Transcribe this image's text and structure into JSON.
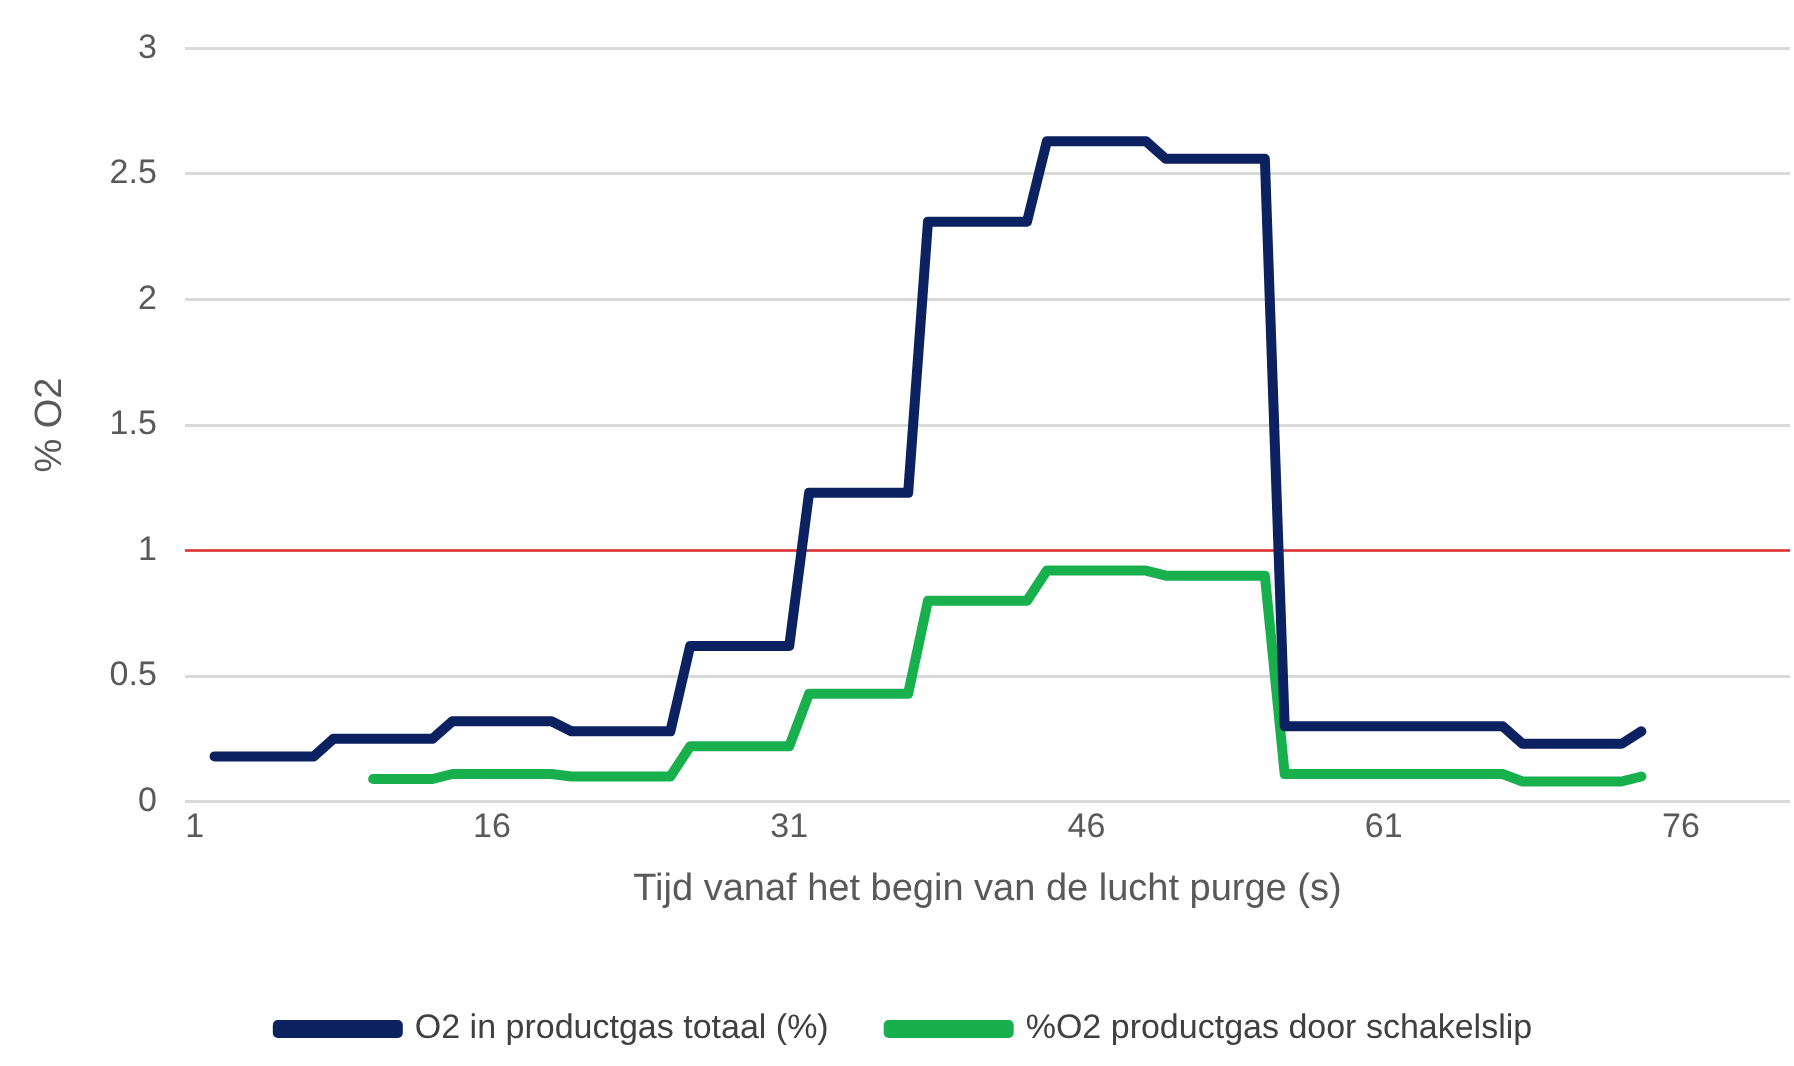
{
  "chart_data": {
    "type": "line",
    "xlabel": "Tijd vanaf het begin van de lucht purge (s)",
    "ylabel": "% O2",
    "xlim": [
      0.5,
      81.5
    ],
    "xticks": [
      1,
      16,
      31,
      46,
      61,
      76
    ],
    "ylim": [
      0,
      3
    ],
    "yticks": [
      0,
      0.5,
      1,
      1.5,
      2,
      2.5,
      3
    ],
    "grid": "y",
    "legend": "bottom",
    "marker": "none",
    "line_style": "solid",
    "ref_lines": [
      {
        "axis": "y",
        "value": 1,
        "color": "#e03030"
      }
    ],
    "series": [
      {
        "name": "O2 in productgas totaal (%)",
        "color": "#0b2160",
        "x": [
          2,
          7,
          8,
          13,
          14,
          19,
          20,
          25,
          26,
          31,
          32,
          37,
          38,
          43,
          44,
          49,
          50,
          55,
          56,
          67,
          68,
          73,
          74
        ],
        "values": [
          0.18,
          0.18,
          0.25,
          0.25,
          0.32,
          0.32,
          0.28,
          0.28,
          0.62,
          0.62,
          1.23,
          1.23,
          2.31,
          2.31,
          2.63,
          2.63,
          2.56,
          2.56,
          0.3,
          0.3,
          0.23,
          0.23,
          0.28
        ]
      },
      {
        "name": "%O2 productgas door schakelslip",
        "color": "#18b04c",
        "x": [
          10,
          13,
          14,
          19,
          20,
          25,
          26,
          31,
          32,
          37,
          38,
          43,
          44,
          49,
          50,
          55,
          56,
          67,
          68,
          73,
          74
        ],
        "values": [
          0.09,
          0.09,
          0.11,
          0.11,
          0.1,
          0.1,
          0.22,
          0.22,
          0.43,
          0.43,
          0.8,
          0.8,
          0.92,
          0.92,
          0.9,
          0.9,
          0.11,
          0.11,
          0.08,
          0.08,
          0.1
        ]
      }
    ]
  }
}
